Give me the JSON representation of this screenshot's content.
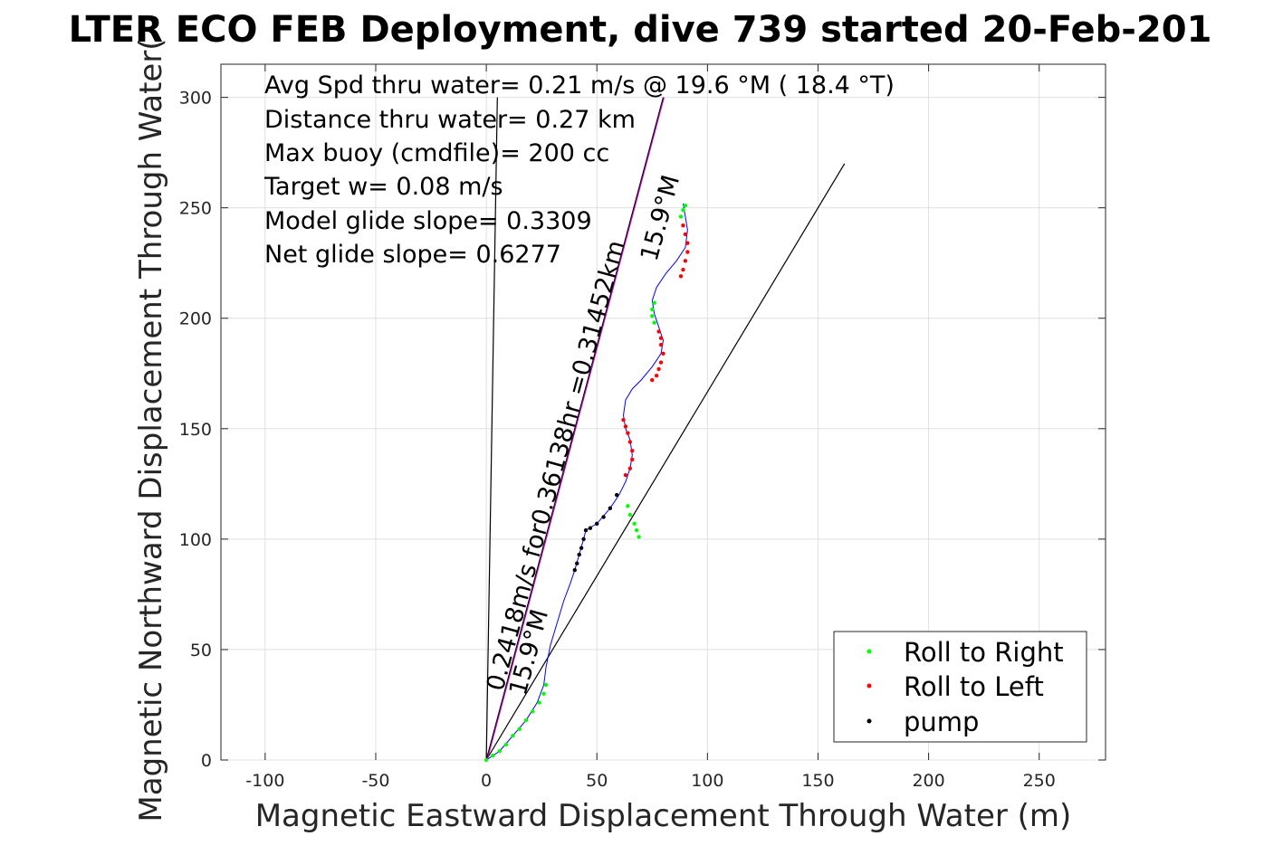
{
  "chart_data": {
    "type": "scatter",
    "title": "LTER ECO FEB Deployment, dive 739 started 20-Feb-201",
    "xlabel": "Magnetic Eastward Displacement Through Water (m)",
    "ylabel": "Magnetic Northward Displacement Through Water(",
    "xlim": [
      -120,
      280
    ],
    "ylim": [
      0,
      315
    ],
    "xticks": [
      -100,
      -50,
      0,
      50,
      100,
      150,
      200,
      250
    ],
    "yticks": [
      0,
      50,
      100,
      150,
      200,
      250,
      300
    ],
    "grid": true,
    "legend_position": "bottom-right",
    "annotations": [
      "Avg Spd thru water=  0.21 m/s @  19.6 °M ( 18.4 °T)",
      "Distance thru water=  0.27 km",
      "Max buoy (cmdfile)= 200 cc",
      "Target w= 0.08 m/s",
      "Model glide slope= 0.3309",
      "Net glide slope= 0.6277"
    ],
    "rotated_labels": {
      "long_line_label": "0.2418m/s for0.36138hr =0.31452km",
      "long_line_heading": "15.9°M",
      "short_line_heading": "15.9°M"
    },
    "series": [
      {
        "name": "Roll to Right",
        "color": "#00ff00",
        "x": [
          0,
          3,
          6,
          9,
          12,
          15,
          18,
          21,
          24,
          26,
          27,
          69,
          68,
          67,
          65,
          64,
          76,
          75,
          75,
          76,
          88,
          89,
          90
        ],
        "y": [
          0,
          2,
          4,
          7,
          11,
          14,
          18,
          22,
          26,
          30,
          34,
          101,
          104,
          107,
          111,
          115,
          198,
          201,
          204,
          207,
          246,
          249,
          251
        ]
      },
      {
        "name": "Roll to Left",
        "color": "#ff0000",
        "x": [
          62,
          63,
          64,
          65,
          66,
          66,
          65,
          63,
          78,
          79,
          79,
          80,
          79,
          78,
          77,
          75,
          88,
          89,
          90,
          91,
          91,
          90,
          89
        ],
        "y": [
          154,
          151,
          148,
          144,
          140,
          136,
          132,
          129,
          194,
          191,
          188,
          184,
          180,
          177,
          174,
          172,
          219,
          222,
          226,
          230,
          234,
          238,
          242
        ]
      },
      {
        "name": "pump",
        "color": "#000000",
        "x": [
          40,
          41,
          42,
          43,
          44,
          45,
          47,
          50,
          53,
          56,
          59
        ],
        "y": [
          86,
          89,
          93,
          96,
          100,
          104,
          105,
          107,
          110,
          114,
          120
        ]
      }
    ],
    "trajectory": {
      "x": [
        0,
        6,
        12,
        18,
        23,
        26,
        27,
        29,
        32,
        35,
        38,
        40,
        42,
        44,
        45,
        50,
        56,
        60,
        63,
        65,
        66,
        65,
        63,
        62,
        63,
        66,
        70,
        75,
        79,
        80,
        78,
        76,
        75,
        77,
        81,
        86,
        90,
        91,
        90,
        89
      ],
      "y": [
        0,
        4,
        11,
        18,
        26,
        34,
        42,
        52,
        62,
        72,
        80,
        86,
        93,
        100,
        104,
        107,
        114,
        120,
        126,
        132,
        138,
        145,
        150,
        156,
        163,
        168,
        172,
        178,
        184,
        190,
        196,
        202,
        208,
        214,
        220,
        226,
        232,
        240,
        246,
        252
      ]
    },
    "guide_lines": [
      {
        "x": [
          0,
          80
        ],
        "y": [
          0,
          300
        ]
      },
      {
        "x": [
          0,
          5
        ],
        "y": [
          0,
          300
        ]
      },
      {
        "x": [
          0,
          162
        ],
        "y": [
          0,
          270
        ]
      }
    ]
  }
}
